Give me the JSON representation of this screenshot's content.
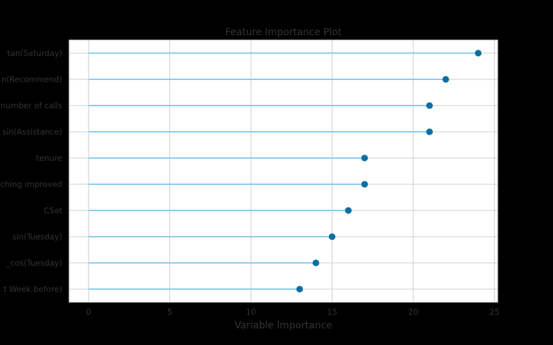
{
  "chart_data": {
    "type": "lollipop",
    "title": "Feature Importance Plot",
    "xlabel": "Variable Importance",
    "ylabel": "",
    "xlim": [
      -1.2,
      25.2
    ],
    "xticks": [
      0,
      5,
      10,
      15,
      20,
      25
    ],
    "grid": true,
    "categories": [
      "tan(Saturday)",
      "n(Recommend)",
      "number of calls",
      "sin(Assistance)",
      "tenure",
      "ching improved",
      "CSat",
      "sin(Tuesday)",
      "_cos(Tuesday)",
      "t Week before)"
    ],
    "values": [
      24,
      22,
      21,
      21,
      17,
      17,
      16,
      15,
      14,
      13
    ],
    "colors": {
      "stem": "#87ceeb",
      "marker": "#0b6fa4",
      "background": "#000000",
      "plot_area": "#ffffff",
      "grid": "#cccccc",
      "text": "#333333"
    }
  }
}
